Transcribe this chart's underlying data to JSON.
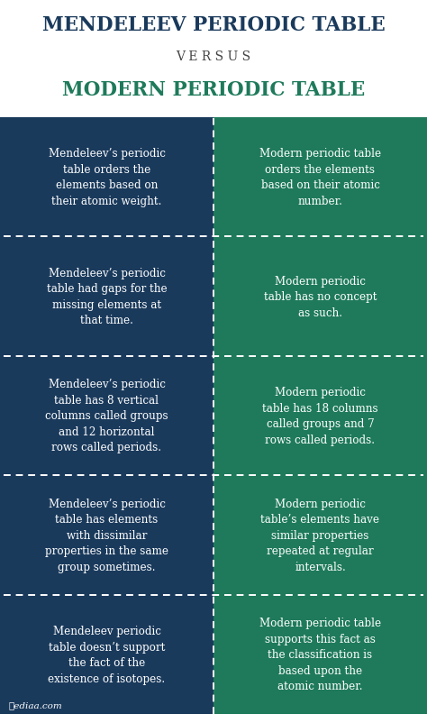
{
  "title1": "MENDELEEV PERIODIC TABLE",
  "versus": "V E R S U S",
  "title2": "MODERN PERIODIC TABLE",
  "title1_color": "#1a3a5c",
  "versus_color": "#444444",
  "title2_color": "#1e7a5a",
  "left_bg": "#1a3a5c",
  "right_bg": "#1e7a5a",
  "text_color": "#ffffff",
  "watermark": "ℙediaa.com",
  "rows": [
    {
      "left": "Mendeleev’s periodic\ntable orders the\nelements based on\ntheir atomic weight.",
      "right": "Modern periodic table\norders the elements\nbased on their atomic\nnumber."
    },
    {
      "left": "Mendeleev’s periodic\ntable had gaps for the\nmissing elements at\nthat time.",
      "right": "Modern periodic\ntable has no concept\nas such."
    },
    {
      "left": "Mendeleev’s periodic\ntable has 8 vertical\ncolumns called groups\nand 12 horizontal\nrows called periods.",
      "right": "Modern periodic\ntable has 18 columns\ncalled groups and 7\nrows called periods."
    },
    {
      "left": "Mendeleev’s periodic\ntable has elements\nwith dissimilar\nproperties in the same\ngroup sometimes.",
      "right": "Modern periodic\ntable’s elements have\nsimilar properties\nrepeated at regular\nintervals."
    },
    {
      "left": "Mendeleev periodic\ntable doesn’t support\nthe fact of the\nexistence of isotopes.",
      "right": "Modern periodic table\nsupports this fact as\nthe classification is\nbased upon the\natomic number."
    }
  ]
}
